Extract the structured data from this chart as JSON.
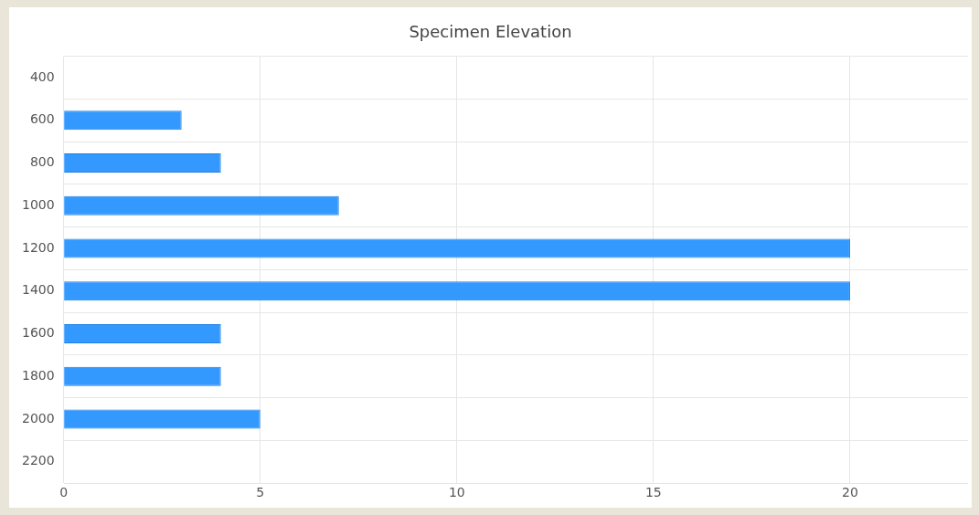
{
  "chart_data": {
    "type": "bar",
    "orientation": "horizontal",
    "title": "Specimen Elevation",
    "categories": [
      "400",
      "600",
      "800",
      "1000",
      "1200",
      "1400",
      "1600",
      "1800",
      "2000",
      "2200"
    ],
    "values": [
      null,
      3,
      4,
      7,
      20,
      20,
      4,
      4,
      5,
      null
    ],
    "color": "#3399ff",
    "xlim": [
      0,
      23
    ],
    "xticks": [
      0,
      5,
      10,
      15,
      20
    ],
    "grid": true,
    "legend": false
  }
}
